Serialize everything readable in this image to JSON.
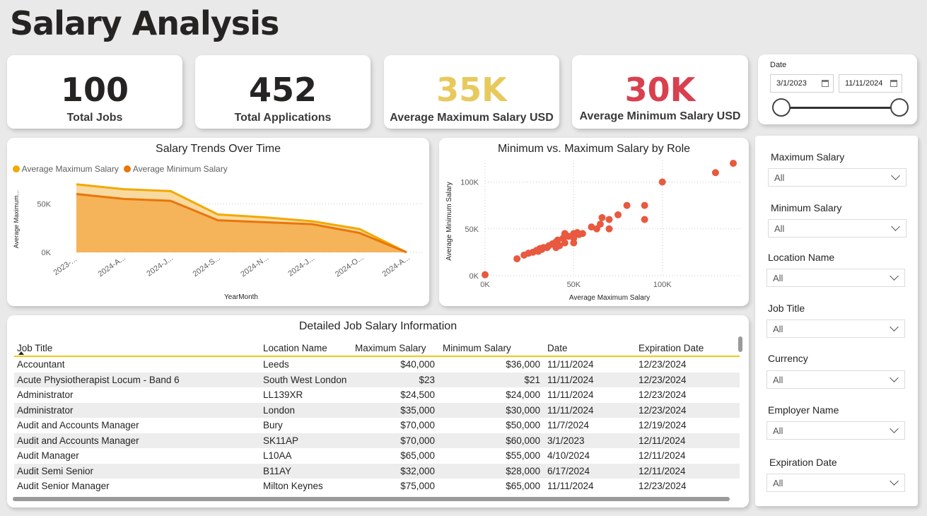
{
  "page": {
    "title": "Salary Analysis"
  },
  "kpis": [
    {
      "value": "100",
      "label": "Total Jobs",
      "color": "#252423"
    },
    {
      "value": "452",
      "label": "Total Applications",
      "color": "#252423"
    },
    {
      "value": "35K",
      "label": "Average Maximum Salary USD",
      "color": "#e8c95d"
    },
    {
      "value": "30K",
      "label": "Average Minimum Salary USD",
      "color": "#d9404f"
    }
  ],
  "date_slicer": {
    "label": "Date",
    "start": "3/1/2023",
    "end": "11/11/2024"
  },
  "trend_chart": {
    "title": "Salary Trends Over Time",
    "legend": [
      "Average Maximum Salary",
      "Average Minimum Salary"
    ],
    "ylabel": "Average Maximum...",
    "xlabel": "YearMonth",
    "yticks": [
      "50K",
      "0K"
    ]
  },
  "scatter_chart": {
    "title": "Minimum vs. Maximum Salary by Role",
    "ylabel": "Average Minimum Salary",
    "xlabel": "Average Maximum Salary",
    "yticks": [
      "100K",
      "50K",
      "0K"
    ],
    "xticks": [
      "0K",
      "50K",
      "100K"
    ]
  },
  "chart_data": [
    {
      "type": "area",
      "title": "Salary Trends Over Time",
      "xlabel": "YearMonth",
      "ylabel": "Average Maximum...",
      "categories": [
        "2023-...",
        "2024-A...",
        "2024-J...",
        "2024-S...",
        "2024-N...",
        "2024-J...",
        "2024-O...",
        "2024-A..."
      ],
      "series": [
        {
          "name": "Average Maximum Salary",
          "color": "#f2a900",
          "values": [
            70000,
            65000,
            63000,
            39000,
            36000,
            32000,
            24000,
            0
          ]
        },
        {
          "name": "Average Minimum Salary",
          "color": "#e8760a",
          "values": [
            60000,
            55000,
            53000,
            33000,
            31000,
            29000,
            20000,
            0
          ]
        }
      ],
      "ylim": [
        0,
        80000
      ]
    },
    {
      "type": "scatter",
      "title": "Minimum vs. Maximum Salary by Role",
      "xlabel": "Average Maximum Salary",
      "ylabel": "Average Minimum Salary",
      "xlim": [
        0,
        140000
      ],
      "ylim": [
        0,
        120000
      ],
      "color": "#e8593f",
      "points": [
        [
          0,
          1000
        ],
        [
          18000,
          18000
        ],
        [
          22000,
          22000
        ],
        [
          24500,
          24000
        ],
        [
          27000,
          25000
        ],
        [
          29000,
          27000
        ],
        [
          30000,
          26000
        ],
        [
          31000,
          29000
        ],
        [
          32000,
          28000
        ],
        [
          33000,
          30000
        ],
        [
          35000,
          30000
        ],
        [
          36000,
          32000
        ],
        [
          38000,
          34000
        ],
        [
          40000,
          36000
        ],
        [
          40000,
          30000
        ],
        [
          41000,
          38000
        ],
        [
          42000,
          32000
        ],
        [
          44000,
          40000
        ],
        [
          45000,
          45000
        ],
        [
          45000,
          35000
        ],
        [
          47000,
          42000
        ],
        [
          50000,
          45000
        ],
        [
          50000,
          40000
        ],
        [
          50000,
          35000
        ],
        [
          52000,
          46000
        ],
        [
          53000,
          44000
        ],
        [
          55000,
          45000
        ],
        [
          60000,
          52000
        ],
        [
          63000,
          50000
        ],
        [
          65000,
          55000
        ],
        [
          66000,
          62000
        ],
        [
          70000,
          50000
        ],
        [
          70000,
          60000
        ],
        [
          75000,
          65000
        ],
        [
          80000,
          75000
        ],
        [
          90000,
          75000
        ],
        [
          90000,
          60000
        ],
        [
          100000,
          100000
        ],
        [
          130000,
          110000
        ],
        [
          140000,
          120000
        ]
      ]
    }
  ],
  "table": {
    "title": "Detailed Job Salary Information",
    "columns": [
      "Job Title",
      "Location Name",
      "Maximum Salary",
      "Minimum Salary",
      "Date",
      "Expiration Date"
    ],
    "rows": [
      [
        "Accountant",
        "Leeds",
        "$40,000",
        "$36,000",
        "11/11/2024",
        "12/23/2024"
      ],
      [
        "Acute Physiotherapist Locum - Band 6",
        "South West London",
        "$23",
        "$21",
        "11/11/2024",
        "12/23/2024"
      ],
      [
        "Administrator",
        "LL139XR",
        "$24,500",
        "$24,000",
        "11/11/2024",
        "12/23/2024"
      ],
      [
        "Administrator",
        "London",
        "$35,000",
        "$30,000",
        "11/11/2024",
        "12/23/2024"
      ],
      [
        "Audit and Accounts Manager",
        "Bury",
        "$70,000",
        "$50,000",
        "11/7/2024",
        "12/19/2024"
      ],
      [
        "Audit and Accounts Manager",
        "SK11AP",
        "$70,000",
        "$60,000",
        "3/1/2023",
        "12/11/2024"
      ],
      [
        "Audit Manager",
        "L10AA",
        "$65,000",
        "$55,000",
        "4/10/2024",
        "12/11/2024"
      ],
      [
        "Audit Semi Senior",
        "B11AY",
        "$32,000",
        "$28,000",
        "6/17/2024",
        "12/11/2024"
      ],
      [
        "Audit Senior Manager",
        "Milton Keynes",
        "$75,000",
        "$65,000",
        "11/11/2024",
        "12/23/2024"
      ]
    ]
  },
  "filters": [
    {
      "label": "Maximum Salary",
      "value": "All"
    },
    {
      "label": "Minimum Salary",
      "value": "All"
    },
    {
      "label": "Location Name",
      "value": "All"
    },
    {
      "label": "Job Title",
      "value": "All"
    },
    {
      "label": "Currency",
      "value": "All"
    },
    {
      "label": "Employer Name",
      "value": "All"
    },
    {
      "label": "Expiration Date",
      "value": "All"
    }
  ]
}
